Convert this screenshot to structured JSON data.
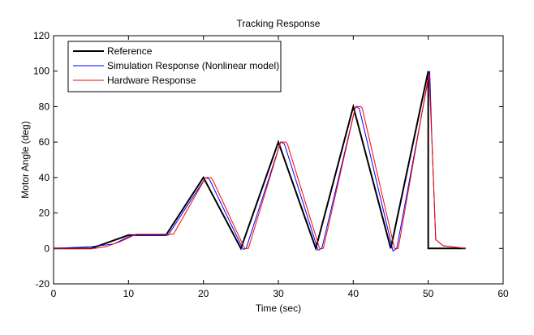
{
  "chart_data": {
    "type": "line",
    "title": "Tracking Response",
    "xlabel": "Time (sec)",
    "ylabel": "Motor Angle (deg)",
    "xlim": [
      0,
      60
    ],
    "ylim": [
      -20,
      120
    ],
    "xticks": [
      0,
      10,
      20,
      30,
      40,
      50,
      60
    ],
    "yticks": [
      -20,
      0,
      20,
      40,
      60,
      80,
      100,
      120
    ],
    "grid": false,
    "legend_placement": "top-left",
    "series": [
      {
        "name": "Reference",
        "color": "#000000",
        "x": [
          0,
          5,
          10,
          15,
          20,
          25,
          30,
          35,
          40,
          45,
          50,
          50,
          55
        ],
        "y": [
          0,
          0,
          7.5,
          7.5,
          40,
          0,
          60,
          0,
          80,
          0,
          100,
          0,
          0
        ]
      },
      {
        "name": "Simulation Response (Nonlinear model)",
        "color": "#0000ff",
        "x": [
          0,
          5,
          8,
          10.5,
          15,
          15.3,
          20.3,
          20.8,
          25.3,
          25.7,
          30.3,
          30.8,
          35.3,
          35.8,
          40.3,
          40.8,
          45.3,
          45.8,
          50.2,
          50.5,
          51,
          52,
          55
        ],
        "y": [
          0,
          1,
          2.5,
          7.5,
          7.5,
          7.5,
          40,
          39,
          -0.5,
          0,
          60,
          59,
          -1,
          0,
          80,
          79,
          -1.5,
          0,
          100,
          60,
          5,
          1.5,
          0
        ]
      },
      {
        "name": "Hardware Response",
        "color": "#ff0000",
        "x": [
          0,
          5.5,
          7,
          9,
          11,
          15.5,
          16,
          20.3,
          21,
          21.2,
          25.5,
          26,
          30.3,
          31,
          31.2,
          35.5,
          36,
          40.3,
          41,
          41.2,
          45.5,
          46,
          50.1,
          50.5,
          51,
          52,
          55
        ],
        "y": [
          0,
          0,
          1,
          4,
          8,
          8,
          8,
          40,
          40,
          39,
          0,
          0,
          60,
          60,
          59,
          0,
          0,
          80,
          80,
          79,
          0,
          0,
          99,
          60,
          5,
          1.5,
          0
        ]
      }
    ]
  }
}
